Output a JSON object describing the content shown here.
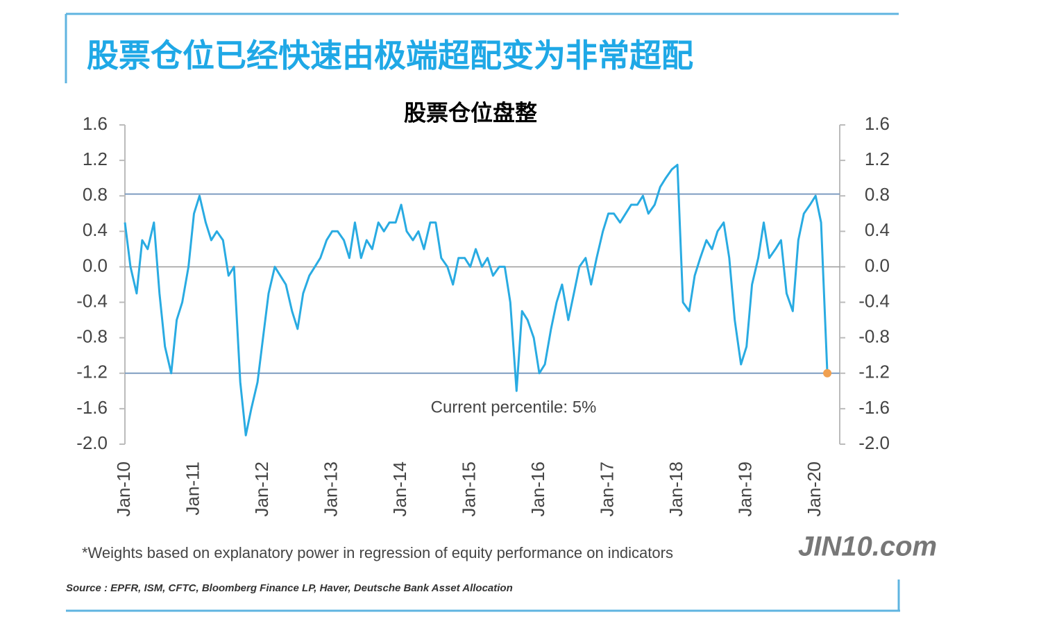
{
  "headline": "股票仓位已经快速由极端超配变为非常超配",
  "watermark": "JIN10.com",
  "chart_data": {
    "type": "line",
    "title": "股票仓位盘整",
    "annotation": "Current percentile: 5%",
    "note": "*Weights based on explanatory power in regression of equity performance on indicators",
    "source": "Source : EPFR, ISM, CFTC, Bloomberg Finance LP, Haver, Deutsche Bank Asset Allocation",
    "color": "#29abe2",
    "reference_lines": [
      0.82,
      -1.2
    ],
    "reference_color": "#7d9cc0",
    "current_marker_color": "#f0a050",
    "xlim": [
      2010,
      2020.35
    ],
    "xticks": [
      {
        "value": 2010,
        "label": "Jan-10"
      },
      {
        "value": 2011,
        "label": "Jan-11"
      },
      {
        "value": 2012,
        "label": "Jan-12"
      },
      {
        "value": 2013,
        "label": "Jan-13"
      },
      {
        "value": 2014,
        "label": "Jan-14"
      },
      {
        "value": 2015,
        "label": "Jan-15"
      },
      {
        "value": 2016,
        "label": "Jan-16"
      },
      {
        "value": 2017,
        "label": "Jan-17"
      },
      {
        "value": 2018,
        "label": "Jan-18"
      },
      {
        "value": 2019,
        "label": "Jan-19"
      },
      {
        "value": 2020,
        "label": "Jan-20"
      }
    ],
    "ylim": [
      -2.0,
      1.6
    ],
    "yticks": [
      1.6,
      1.2,
      0.8,
      0.4,
      {
        "value": 0,
        "label": "0.0"
      },
      -0.4,
      -0.8,
      -1.2,
      -1.6,
      {
        "value": -2,
        "label": "-2.0"
      }
    ],
    "y2lim": [
      -2.0,
      1.6
    ],
    "y2ticks": [
      1.6,
      1.2,
      0.8,
      0.4,
      {
        "value": 0,
        "label": "0.0"
      },
      -0.4,
      -0.8,
      -1.2,
      -1.6,
      {
        "value": -2,
        "label": "-2.0"
      }
    ],
    "x": [
      2010,
      2010.08,
      2010.17,
      2010.25,
      2010.33,
      2010.42,
      2010.5,
      2010.58,
      2010.67,
      2010.75,
      2010.83,
      2010.92,
      2011,
      2011.08,
      2011.17,
      2011.25,
      2011.33,
      2011.42,
      2011.5,
      2011.58,
      2011.67,
      2011.75,
      2011.83,
      2011.92,
      2012,
      2012.08,
      2012.17,
      2012.25,
      2012.33,
      2012.42,
      2012.5,
      2012.58,
      2012.67,
      2012.75,
      2012.83,
      2012.92,
      2013,
      2013.08,
      2013.17,
      2013.25,
      2013.33,
      2013.42,
      2013.5,
      2013.58,
      2013.67,
      2013.75,
      2013.83,
      2013.92,
      2014,
      2014.08,
      2014.17,
      2014.25,
      2014.33,
      2014.42,
      2014.5,
      2014.58,
      2014.67,
      2014.75,
      2014.83,
      2014.92,
      2015,
      2015.08,
      2015.17,
      2015.25,
      2015.33,
      2015.42,
      2015.5,
      2015.58,
      2015.67,
      2015.75,
      2015.83,
      2015.92,
      2016,
      2016.08,
      2016.17,
      2016.25,
      2016.33,
      2016.42,
      2016.5,
      2016.58,
      2016.67,
      2016.75,
      2016.83,
      2016.92,
      2017,
      2017.08,
      2017.17,
      2017.25,
      2017.33,
      2017.42,
      2017.5,
      2017.58,
      2017.67,
      2017.75,
      2017.83,
      2017.92,
      2018,
      2018.08,
      2018.17,
      2018.25,
      2018.33,
      2018.42,
      2018.5,
      2018.58,
      2018.67,
      2018.75,
      2018.83,
      2018.92,
      2019,
      2019.08,
      2019.17,
      2019.25,
      2019.33,
      2019.42,
      2019.5,
      2019.58,
      2019.67,
      2019.75,
      2019.83,
      2019.92,
      2020,
      2020.08,
      2020.17
    ],
    "values": [
      0.5,
      0.0,
      -0.3,
      0.3,
      0.2,
      0.5,
      -0.3,
      -0.9,
      -1.2,
      -0.6,
      -0.4,
      0.0,
      0.6,
      0.8,
      0.5,
      0.3,
      0.4,
      0.3,
      -0.1,
      0.0,
      -1.3,
      -1.9,
      -1.6,
      -1.3,
      -0.8,
      -0.3,
      0.0,
      -0.1,
      -0.2,
      -0.5,
      -0.7,
      -0.3,
      -0.1,
      0.0,
      0.1,
      0.3,
      0.4,
      0.4,
      0.3,
      0.1,
      0.5,
      0.1,
      0.3,
      0.2,
      0.5,
      0.4,
      0.5,
      0.5,
      0.7,
      0.4,
      0.3,
      0.4,
      0.2,
      0.5,
      0.5,
      0.1,
      0.0,
      -0.2,
      0.1,
      0.1,
      0.0,
      0.2,
      0.0,
      0.1,
      -0.1,
      0.0,
      0.0,
      -0.4,
      -1.4,
      -0.5,
      -0.6,
      -0.8,
      -1.2,
      -1.1,
      -0.7,
      -0.4,
      -0.2,
      -0.6,
      -0.3,
      0.0,
      0.1,
      -0.2,
      0.1,
      0.4,
      0.6,
      0.6,
      0.5,
      0.6,
      0.7,
      0.7,
      0.8,
      0.6,
      0.7,
      0.9,
      1.0,
      1.1,
      1.15,
      -0.4,
      -0.5,
      -0.1,
      0.1,
      0.3,
      0.2,
      0.4,
      0.5,
      0.1,
      -0.6,
      -1.1,
      -0.9,
      -0.2,
      0.1,
      0.5,
      0.1,
      0.2,
      0.3,
      -0.3,
      -0.5,
      0.3,
      0.6,
      0.7,
      0.8,
      0.5,
      -1.2
    ]
  }
}
